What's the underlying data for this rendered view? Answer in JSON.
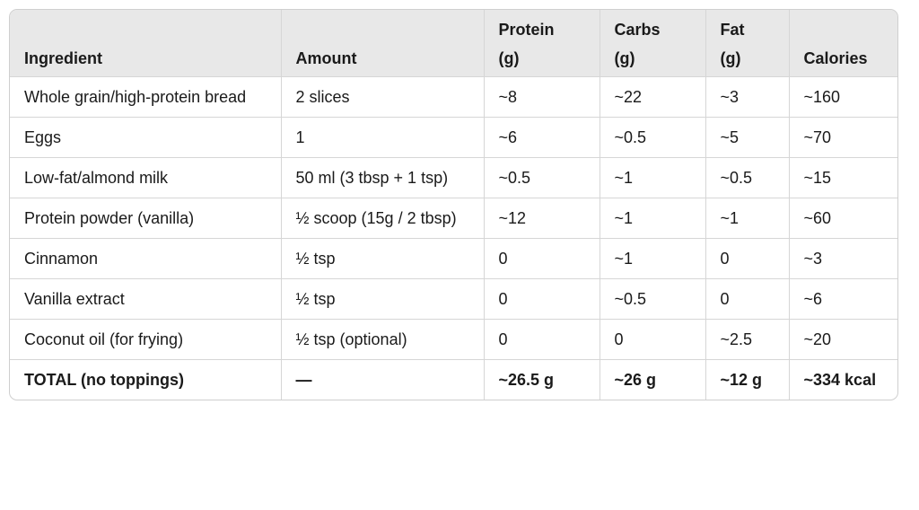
{
  "headers": [
    {
      "line1": "",
      "line2": "Ingredient"
    },
    {
      "line1": "",
      "line2": "Amount"
    },
    {
      "line1": "Protein",
      "line2": "(g)"
    },
    {
      "line1": "Carbs",
      "line2": "(g)"
    },
    {
      "line1": "Fat",
      "line2": "(g)"
    },
    {
      "line1": "",
      "line2": "Calories"
    }
  ],
  "rows": [
    {
      "ingredient": "Whole grain/high-protein bread",
      "amount": "2 slices",
      "protein": "~8",
      "carbs": "~22",
      "fat": "~3",
      "calories": "~160"
    },
    {
      "ingredient": "Eggs",
      "amount": "1",
      "protein": "~6",
      "carbs": "~0.5",
      "fat": "~5",
      "calories": "~70"
    },
    {
      "ingredient": "Low-fat/almond milk",
      "amount": "50 ml (3 tbsp + 1 tsp)",
      "protein": "~0.5",
      "carbs": "~1",
      "fat": "~0.5",
      "calories": "~15"
    },
    {
      "ingredient": "Protein powder (vanilla)",
      "amount": "½ scoop (15g / 2 tbsp)",
      "protein": "~12",
      "carbs": "~1",
      "fat": "~1",
      "calories": "~60"
    },
    {
      "ingredient": "Cinnamon",
      "amount": "½ tsp",
      "protein": "0",
      "carbs": "~1",
      "fat": "0",
      "calories": "~3"
    },
    {
      "ingredient": "Vanilla extract",
      "amount": "½ tsp",
      "protein": "0",
      "carbs": "~0.5",
      "fat": "0",
      "calories": "~6"
    },
    {
      "ingredient": "Coconut oil (for frying)",
      "amount": "½ tsp (optional)",
      "protein": "0",
      "carbs": "0",
      "fat": "~2.5",
      "calories": "~20"
    }
  ],
  "total": {
    "ingredient": "TOTAL (no toppings)",
    "amount": "—",
    "protein": "~26.5 g",
    "carbs": "~26 g",
    "fat": "~12 g",
    "calories": "~334 kcal"
  }
}
